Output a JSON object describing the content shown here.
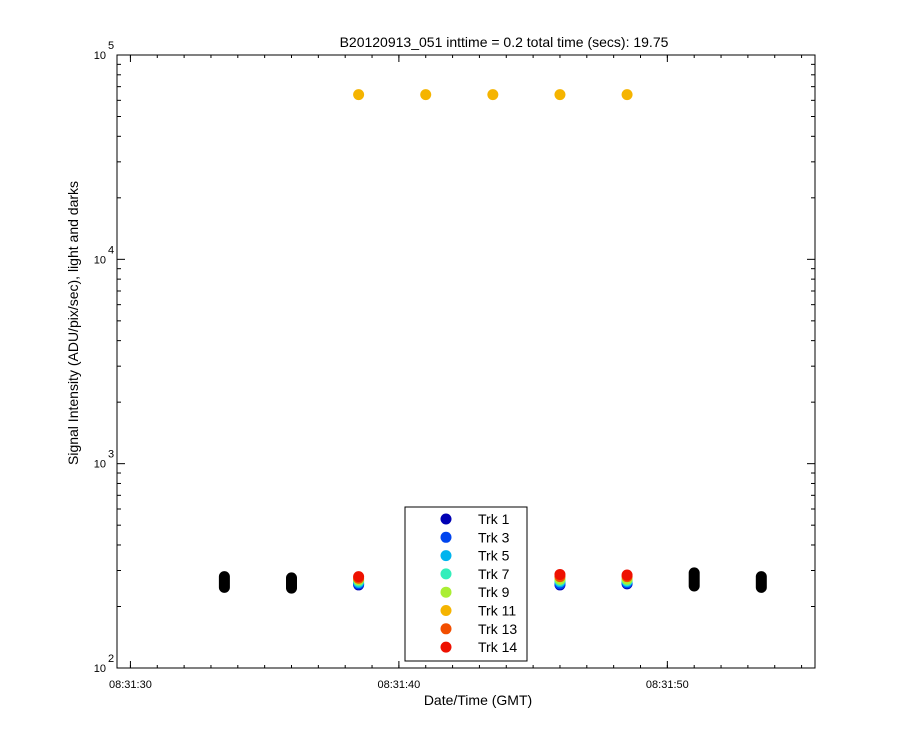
{
  "chart_data": {
    "type": "scatter",
    "title": "B20120913_051 inttime = 0.2 total time (secs): 19.75",
    "xlabel": "Date/Time (GMT)",
    "ylabel": "Signal Intensity (ADU/pix/sec), light and darks",
    "yscale": "log",
    "ylim": [
      100,
      100000
    ],
    "xlim": [
      "08:31:29.5",
      "08:31:55.5"
    ],
    "x_ticks": [
      "08:31:30",
      "08:31:40",
      "08:31:50"
    ],
    "y_ticks": [
      {
        "base": "10",
        "exp": "2",
        "value": 100
      },
      {
        "base": "10",
        "exp": "3",
        "value": 1000
      },
      {
        "base": "10",
        "exp": "4",
        "value": 10000
      },
      {
        "base": "10",
        "exp": "5",
        "value": 100000
      }
    ],
    "grid": false,
    "legend_position": "bottom-center",
    "series": [
      {
        "name": "Trk 1",
        "color": "#0000b4",
        "x": [
          "08:31:38.5",
          "08:31:46",
          "08:31:48.5"
        ],
        "y": [
          255,
          255,
          258
        ]
      },
      {
        "name": "Trk 3",
        "color": "#0044ee",
        "x": [
          "08:31:38.5",
          "08:31:46",
          "08:31:48.5"
        ],
        "y": [
          258,
          258,
          261
        ]
      },
      {
        "name": "Trk 5",
        "color": "#00b4ee",
        "x": [
          "08:31:38.5",
          "08:31:46",
          "08:31:48.5"
        ],
        "y": [
          262,
          264,
          265
        ]
      },
      {
        "name": "Trk 7",
        "color": "#33eebb",
        "x": [
          "08:31:38.5",
          "08:31:46",
          "08:31:48.5"
        ],
        "y": [
          266,
          268,
          268
        ]
      },
      {
        "name": "Trk 9",
        "color": "#aaee33",
        "x": [
          "08:31:38.5",
          "08:31:46",
          "08:31:48.5"
        ],
        "y": [
          270,
          272,
          272
        ]
      },
      {
        "name": "Trk 11",
        "color": "#f5b400",
        "x": [
          "08:31:38.5",
          "08:31:41",
          "08:31:43.5",
          "08:31:46",
          "08:31:48.5"
        ],
        "y": [
          64000,
          64000,
          64000,
          64000,
          64000
        ]
      },
      {
        "name": "Trk 13",
        "color": "#f24e00",
        "x": [
          "08:31:38.5",
          "08:31:46",
          "08:31:48.5"
        ],
        "y": [
          275,
          280,
          280
        ]
      },
      {
        "name": "Trk 14",
        "color": "#ee1100",
        "x": [
          "08:31:38.5",
          "08:31:46",
          "08:31:48.5"
        ],
        "y": [
          280,
          287,
          285
        ]
      }
    ],
    "dark_points": {
      "color": "#000000",
      "x": [
        "08:31:33.5",
        "08:31:36",
        "08:31:51",
        "08:31:53.5"
      ],
      "y_ranges": [
        [
          248,
          280
        ],
        [
          246,
          276
        ],
        [
          252,
          292
        ],
        [
          248,
          280
        ]
      ]
    }
  }
}
